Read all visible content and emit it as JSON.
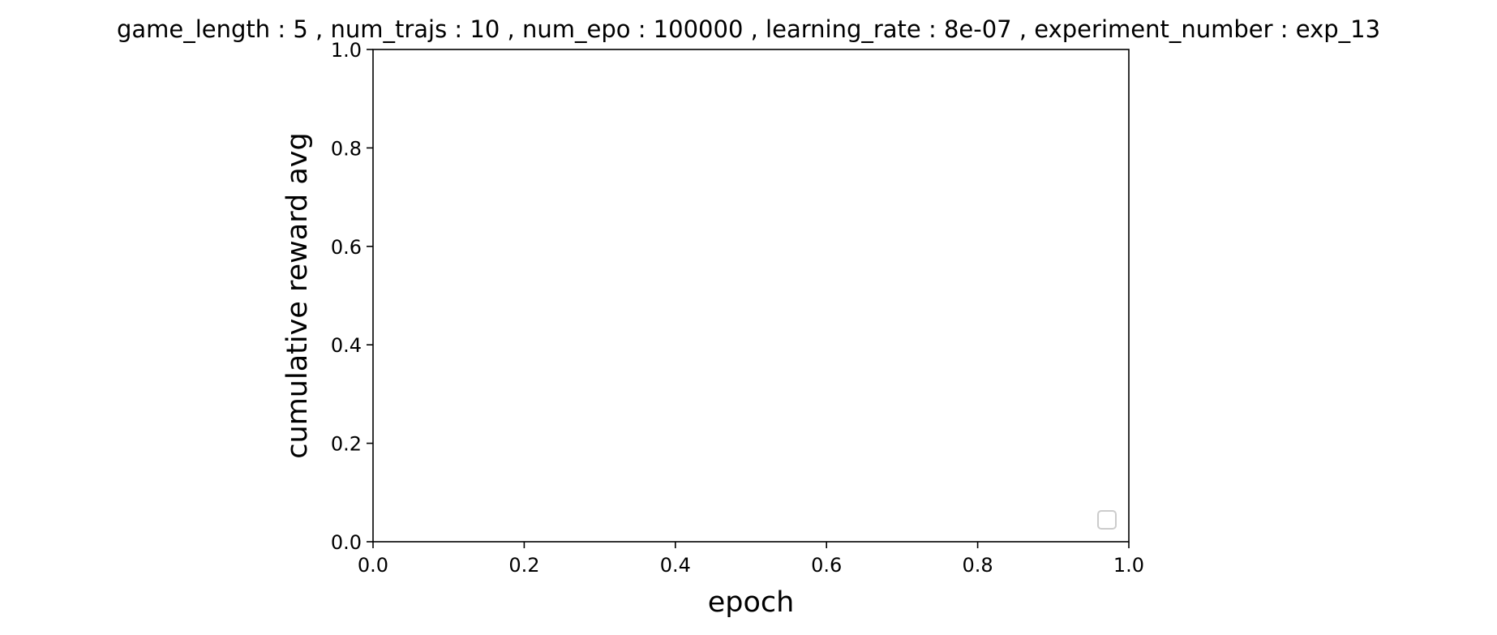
{
  "chart_data": {
    "type": "line",
    "title": "game_length : 5 , num_trajs : 10 , num_epo : 100000 , learning_rate : 8e-07 , experiment_number : exp_13",
    "xlabel": "epoch",
    "ylabel": "cumulative reward avg",
    "xlim": [
      0.0,
      1.0
    ],
    "ylim": [
      0.0,
      1.0
    ],
    "x_ticks": [
      "0.0",
      "0.2",
      "0.4",
      "0.6",
      "0.8",
      "1.0"
    ],
    "y_ticks": [
      "0.0",
      "0.2",
      "0.4",
      "0.6",
      "0.8",
      "1.0"
    ],
    "series": [],
    "grid": false,
    "legend": {
      "placement": "lower right",
      "entries": []
    },
    "colors": {
      "axis": "#000000",
      "legend_border": "#cccccc",
      "background": "#ffffff"
    }
  }
}
